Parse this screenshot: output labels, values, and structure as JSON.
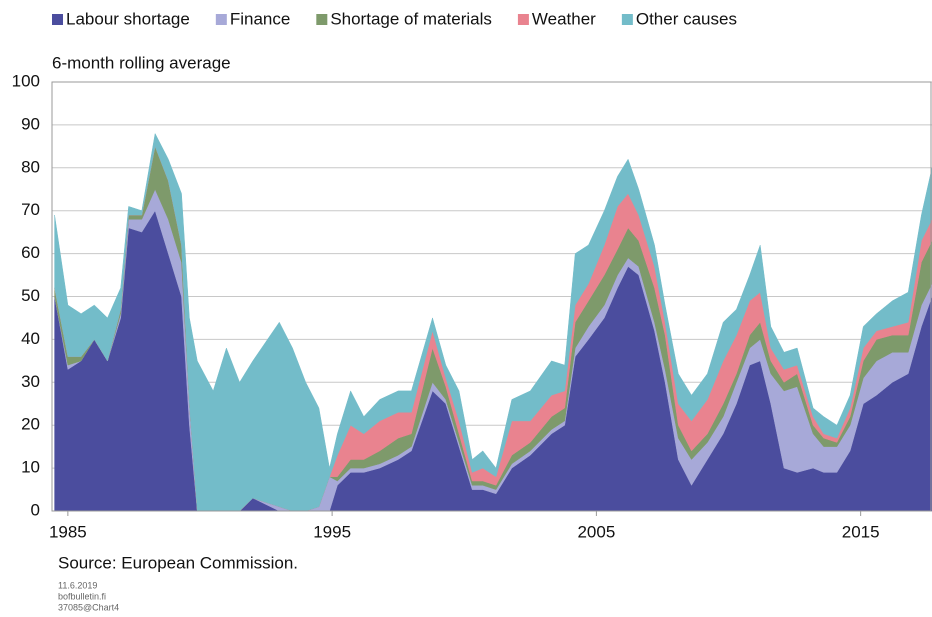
{
  "chart_data": {
    "type": "stacked_area",
    "subtitle": "6-month rolling average",
    "source": "Source: European Commission.",
    "footer": [
      "11.6.2019",
      "bofbulletin.fi",
      "37085@Chart4"
    ],
    "x": [
      1984.5,
      1985,
      1985.5,
      1986,
      1986.5,
      1987,
      1987.3,
      1987.8,
      1988.3,
      1988.8,
      1989.3,
      1989.6,
      1989.9,
      1990.5,
      1991,
      1991.5,
      1992,
      1993,
      1993.5,
      1994,
      1994.5,
      1994.9,
      1995.2,
      1995.7,
      1996.2,
      1996.8,
      1997.5,
      1998,
      1998.8,
      1999.3,
      1999.8,
      2000.3,
      2000.7,
      2001.2,
      2001.8,
      2002.5,
      2003.3,
      2003.8,
      2004.2,
      2004.7,
      2005.3,
      2005.8,
      2006.2,
      2006.6,
      2007.2,
      2007.6,
      2008.1,
      2008.6,
      2009.2,
      2009.8,
      2010.3,
      2010.8,
      2011.2,
      2011.6,
      2012.1,
      2012.6,
      2013.2,
      2013.6,
      2014.1,
      2014.6,
      2015.1,
      2015.6,
      2016.2,
      2016.8,
      2017.3,
      2017.7
    ],
    "series": [
      {
        "name": "Labour shortage",
        "color": "#4b4d9e",
        "values": [
          50,
          33,
          35,
          40,
          35,
          45,
          66,
          65,
          70,
          60,
          50,
          20,
          0,
          0,
          0,
          0,
          3,
          0,
          0,
          0,
          0,
          0,
          6,
          9,
          9,
          10,
          12,
          14,
          28,
          25,
          15,
          5,
          5,
          4,
          10,
          13,
          18,
          20,
          36,
          40,
          45,
          52,
          57,
          55,
          42,
          30,
          12,
          6,
          12,
          18,
          25,
          34,
          35,
          25,
          10,
          9,
          10,
          9,
          9,
          14,
          25,
          27,
          30,
          32,
          43,
          50
        ]
      },
      {
        "name": "Finance",
        "color": "#a7a9d8",
        "values": [
          0,
          1,
          0,
          0,
          0,
          1,
          2,
          3,
          5,
          8,
          8,
          5,
          0,
          0,
          0,
          0,
          0,
          1,
          0,
          0,
          1,
          8,
          1,
          1,
          1,
          1,
          1,
          1,
          2,
          1,
          1,
          1,
          1,
          1,
          1,
          1,
          1,
          1,
          2,
          3,
          3,
          3,
          2,
          2,
          2,
          3,
          5,
          6,
          4,
          4,
          5,
          4,
          5,
          7,
          18,
          20,
          8,
          6,
          6,
          6,
          6,
          8,
          7,
          5,
          5,
          3
        ]
      },
      {
        "name": "Shortage of materials",
        "color": "#7e9a6b",
        "values": [
          2,
          2,
          1,
          0,
          0,
          1,
          1,
          1,
          10,
          9,
          4,
          0,
          0,
          0,
          0,
          0,
          0,
          0,
          0,
          0,
          0,
          0,
          1,
          2,
          2,
          3,
          4,
          3,
          8,
          3,
          2,
          1,
          1,
          1,
          2,
          2,
          3,
          3,
          6,
          6,
          7,
          6,
          7,
          6,
          8,
          8,
          3,
          2,
          2,
          3,
          2,
          3,
          4,
          3,
          2,
          3,
          2,
          2,
          1,
          2,
          4,
          5,
          4,
          4,
          10,
          10
        ]
      },
      {
        "name": "Weather",
        "color": "#e9838f",
        "values": [
          0,
          0,
          0,
          0,
          0,
          0,
          0,
          0,
          0,
          0,
          0,
          0,
          0,
          0,
          0,
          0,
          0,
          0,
          0,
          0,
          0,
          0,
          5,
          8,
          6,
          7,
          6,
          5,
          4,
          2,
          3,
          2,
          3,
          2,
          8,
          5,
          5,
          4,
          4,
          4,
          7,
          10,
          8,
          6,
          5,
          3,
          5,
          7,
          8,
          10,
          9,
          8,
          7,
          3,
          3,
          2,
          2,
          1,
          1,
          2,
          3,
          2,
          2,
          3,
          5,
          5
        ]
      },
      {
        "name": "Other causes",
        "color": "#73bcc9",
        "values": [
          17,
          12,
          10,
          8,
          10,
          5,
          2,
          1,
          3,
          5,
          12,
          20,
          35,
          28,
          38,
          30,
          32,
          43,
          38,
          30,
          23,
          2,
          5,
          8,
          4,
          5,
          5,
          5,
          3,
          3,
          7,
          3,
          4,
          2,
          5,
          7,
          8,
          6,
          12,
          9,
          8,
          7,
          8,
          6,
          5,
          4,
          7,
          6,
          6,
          9,
          6,
          6,
          11,
          5,
          4,
          4,
          2,
          4,
          3,
          3,
          5,
          4,
          6,
          7,
          6,
          12
        ]
      }
    ],
    "xlim": [
      1984.4,
      2017.7
    ],
    "xticks": [
      1985,
      1995,
      2005,
      2015
    ],
    "ylim": [
      0,
      100
    ],
    "yticks": [
      0,
      10,
      20,
      30,
      40,
      50,
      60,
      70,
      80,
      90,
      100
    ],
    "grid": true
  }
}
